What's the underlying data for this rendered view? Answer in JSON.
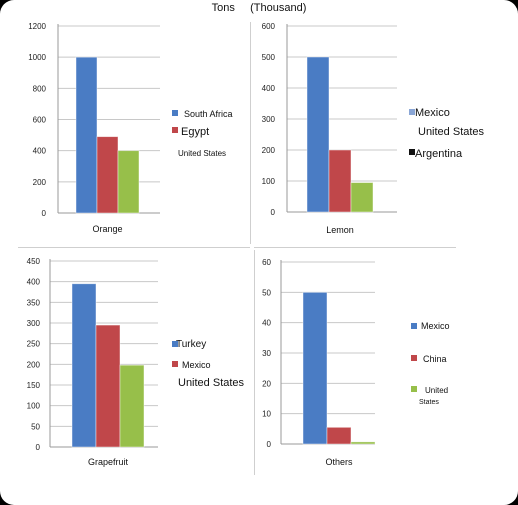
{
  "title": "Tons     (Thousand)",
  "colors": {
    "blue": "#4a7cc4",
    "red": "#c0474a",
    "green": "#97bf4a"
  },
  "chart_data": [
    {
      "type": "bar",
      "categories": [
        "Orange"
      ],
      "ylim": [
        0,
        1200
      ],
      "ticks": [
        0,
        200,
        400,
        600,
        800,
        1000,
        1200
      ],
      "series": [
        {
          "name": "South Africa",
          "values": [
            1000
          ]
        },
        {
          "name": "Egypt",
          "values": [
            490
          ]
        },
        {
          "name": "United States",
          "values": [
            400
          ]
        }
      ],
      "legend_position": "right"
    },
    {
      "type": "bar",
      "categories": [
        "Lemon"
      ],
      "ylim": [
        0,
        600
      ],
      "ticks": [
        0,
        100,
        200,
        300,
        400,
        500,
        600
      ],
      "series": [
        {
          "name": "Mexico",
          "values": [
            500
          ]
        },
        {
          "name": "United States",
          "values": [
            200
          ]
        },
        {
          "name": "Argentina",
          "values": [
            95
          ]
        }
      ],
      "legend_position": "right"
    },
    {
      "type": "bar",
      "categories": [
        "Grapefruit"
      ],
      "ylim": [
        0,
        450
      ],
      "ticks": [
        0,
        50,
        100,
        150,
        200,
        250,
        300,
        350,
        400,
        450
      ],
      "series": [
        {
          "name": "Turkey",
          "values": [
            395
          ]
        },
        {
          "name": "Mexico",
          "values": [
            295
          ]
        },
        {
          "name": "United States",
          "values": [
            198
          ]
        }
      ],
      "legend_position": "right"
    },
    {
      "type": "bar",
      "categories": [
        "Others"
      ],
      "ylim": [
        0,
        60
      ],
      "ticks": [
        0,
        10,
        20,
        30,
        40,
        50,
        60
      ],
      "series": [
        {
          "name": "Mexico",
          "values": [
            50
          ]
        },
        {
          "name": "China",
          "values": [
            5.5
          ]
        },
        {
          "name": "United States",
          "values": [
            0.7
          ]
        }
      ],
      "legend_position": "right"
    }
  ]
}
